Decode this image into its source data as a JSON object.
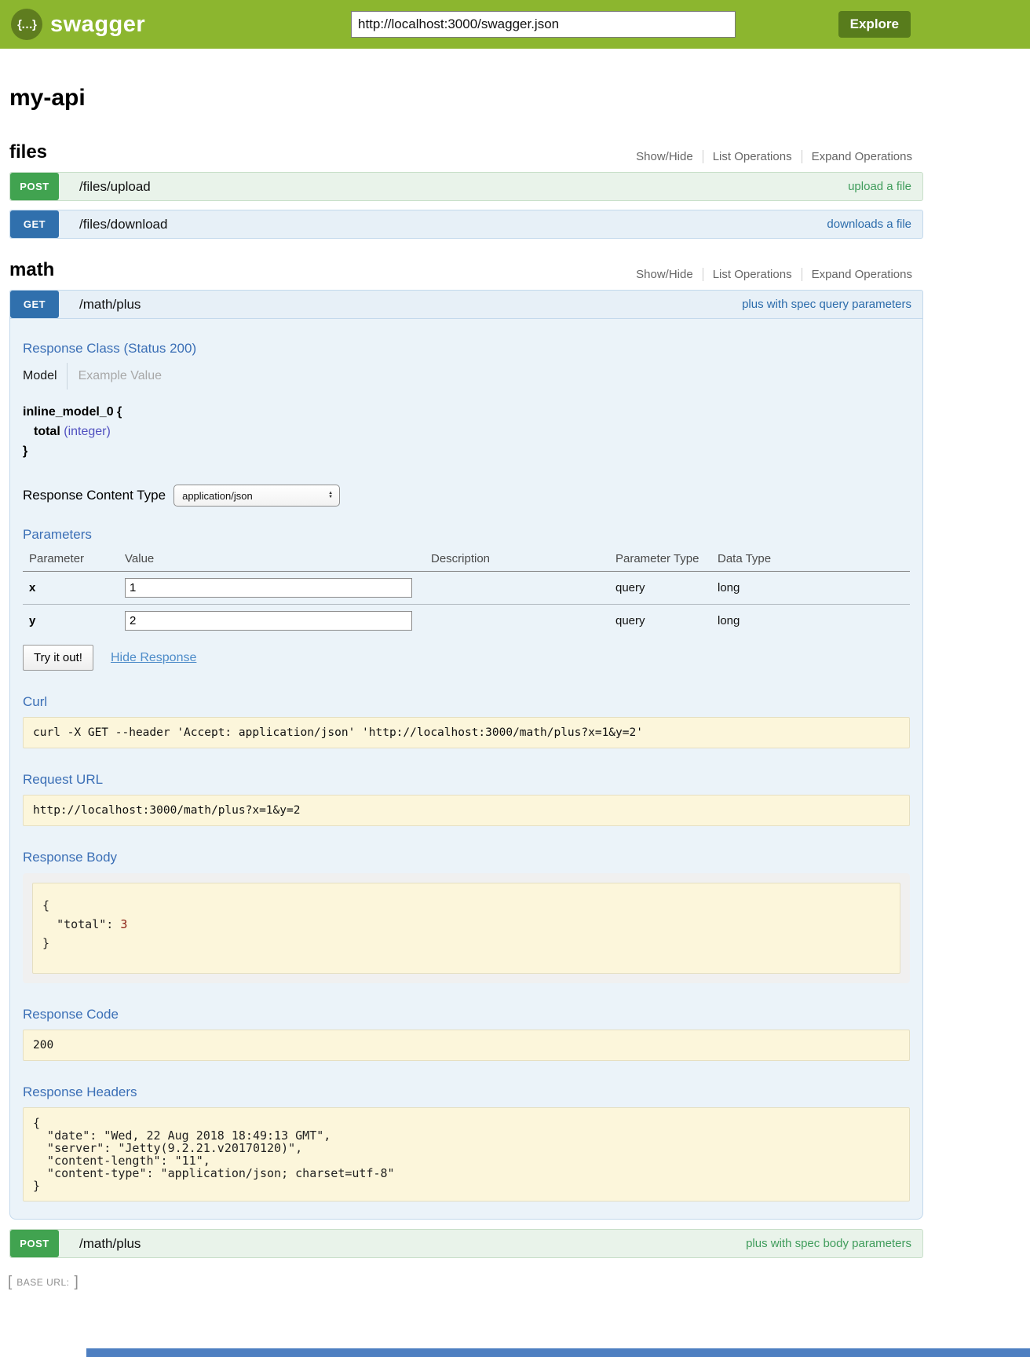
{
  "header": {
    "logo_glyph": "{…}",
    "brand": "swagger",
    "url_input_value": "http://localhost:3000/swagger.json",
    "explore_button": "Explore"
  },
  "page": {
    "title": "my-api"
  },
  "controls": {
    "show_hide": "Show/Hide",
    "list_operations": "List Operations",
    "expand_operations": "Expand Operations"
  },
  "files_section": {
    "title": "files",
    "operations": [
      {
        "method": "POST",
        "path": "/files/upload",
        "summary": "upload a file"
      },
      {
        "method": "GET",
        "path": "/files/download",
        "summary": "downloads a file"
      }
    ]
  },
  "math_section": {
    "title": "math",
    "get_plus": {
      "method": "GET",
      "path": "/math/plus",
      "summary": "plus with spec query parameters",
      "response_class": {
        "heading": "Response Class (Status 200)",
        "tab_model": "Model",
        "tab_example": "Example Value",
        "model_open": "inline_model_0 {",
        "prop_name": "total",
        "prop_type": "(integer)",
        "model_close": "}"
      },
      "response_content_type": {
        "label": "Response Content Type",
        "selected": "application/json"
      },
      "parameters": {
        "heading": "Parameters",
        "columns": [
          "Parameter",
          "Value",
          "Description",
          "Parameter Type",
          "Data Type"
        ],
        "rows": [
          {
            "name": "x",
            "value": "1",
            "description": "",
            "param_type": "query",
            "data_type": "long"
          },
          {
            "name": "y",
            "value": "2",
            "description": "",
            "param_type": "query",
            "data_type": "long"
          }
        ]
      },
      "try_it_out": "Try it out!",
      "hide_response": "Hide Response",
      "curl": {
        "heading": "Curl",
        "command": "curl -X GET --header 'Accept: application/json' 'http://localhost:3000/math/plus?x=1&y=2'"
      },
      "request_url": {
        "heading": "Request URL",
        "value": "http://localhost:3000/math/plus?x=1&y=2"
      },
      "response_body": {
        "heading": "Response Body",
        "open": "{",
        "key": "\"total\"",
        "sep": ": ",
        "value": "3",
        "close": "}"
      },
      "response_code": {
        "heading": "Response Code",
        "value": "200"
      },
      "response_headers": {
        "heading": "Response Headers",
        "value": "{\n  \"date\": \"Wed, 22 Aug 2018 18:49:13 GMT\",\n  \"server\": \"Jetty(9.2.21.v20170120)\",\n  \"content-length\": \"11\",\n  \"content-type\": \"application/json; charset=utf-8\"\n}"
      }
    },
    "post_plus": {
      "method": "POST",
      "path": "/math/plus",
      "summary": "plus with spec body parameters"
    }
  },
  "footer": {
    "bracket_open": "[",
    "label": "BASE URL:",
    "bracket_close": "]"
  }
}
